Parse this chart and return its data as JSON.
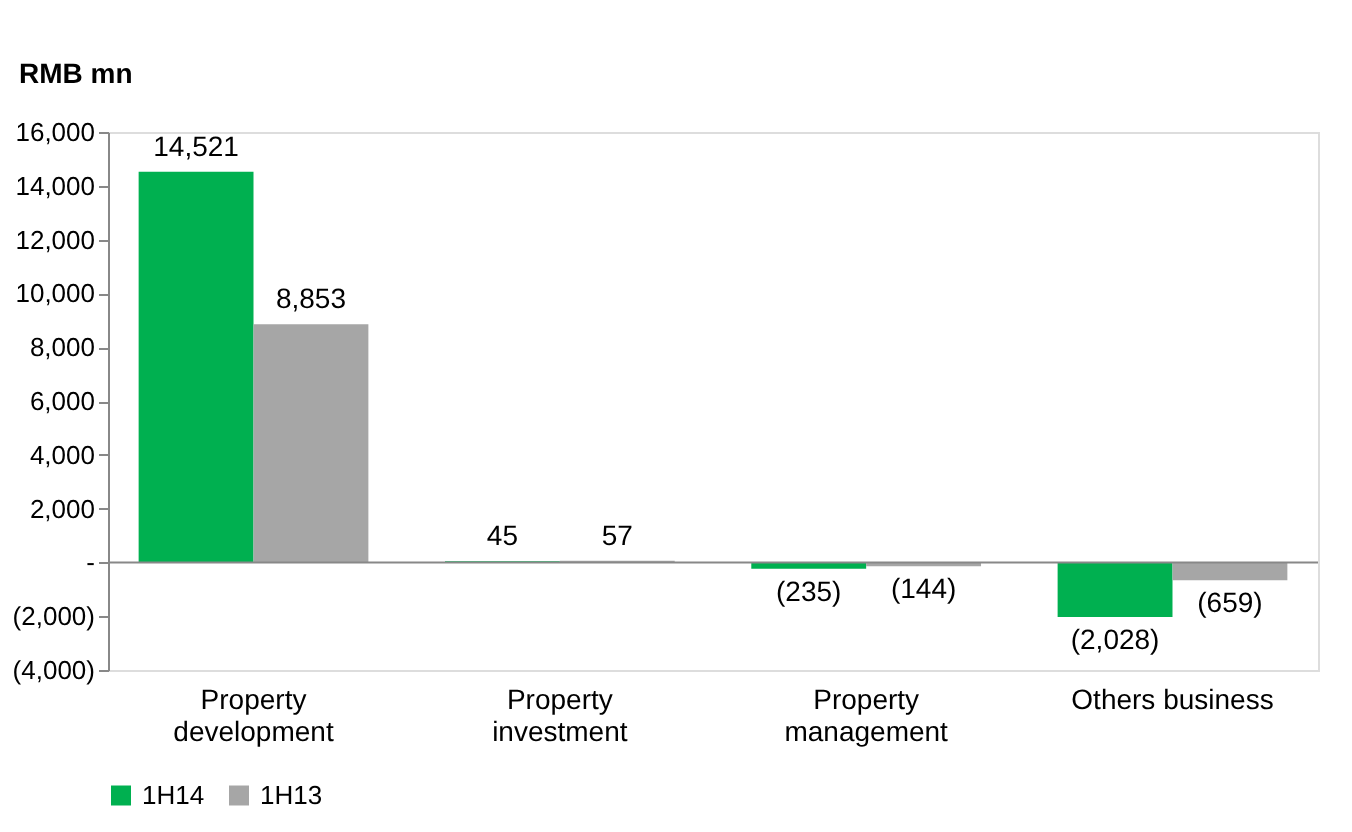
{
  "chart_data": {
    "type": "bar",
    "ylabel": "RMB mn",
    "categories": [
      "Property\ndevelopment",
      "Property\ninvestment",
      "Property\nmanagement",
      "Others business"
    ],
    "series": [
      {
        "name": "1H14",
        "color": "#00b050",
        "values": [
          14521,
          45,
          -235,
          -2028
        ],
        "value_labels": [
          "14,521",
          "45",
          "(235)",
          "(2,028)"
        ]
      },
      {
        "name": "1H13",
        "color": "#a6a6a6",
        "values": [
          8853,
          57,
          -144,
          -659
        ],
        "value_labels": [
          "8,853",
          "57",
          "(144)",
          "(659)"
        ]
      }
    ],
    "ylim": [
      -4000,
      16000
    ],
    "yticks": [
      {
        "value": -4000,
        "label": "(4,000)"
      },
      {
        "value": -2000,
        "label": "(2,000)"
      },
      {
        "value": 0,
        "label": "-"
      },
      {
        "value": 2000,
        "label": "2,000"
      },
      {
        "value": 4000,
        "label": "4,000"
      },
      {
        "value": 6000,
        "label": "6,000"
      },
      {
        "value": 8000,
        "label": "8,000"
      },
      {
        "value": 10000,
        "label": "10,000"
      },
      {
        "value": 12000,
        "label": "12,000"
      },
      {
        "value": 14000,
        "label": "14,000"
      },
      {
        "value": 16000,
        "label": "16,000"
      }
    ],
    "legend": "bottom"
  }
}
